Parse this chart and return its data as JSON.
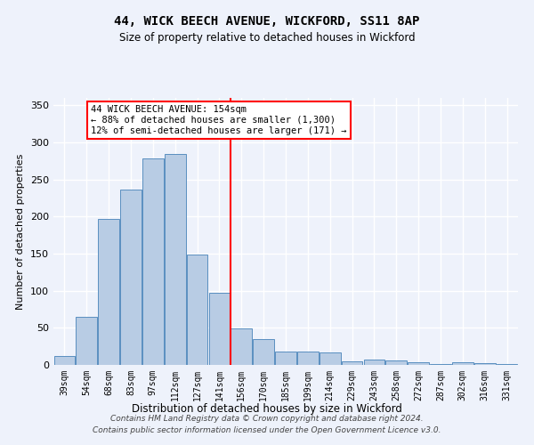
{
  "title": "44, WICK BEECH AVENUE, WICKFORD, SS11 8AP",
  "subtitle": "Size of property relative to detached houses in Wickford",
  "xlabel": "Distribution of detached houses by size in Wickford",
  "ylabel": "Number of detached properties",
  "footnote1": "Contains HM Land Registry data © Crown copyright and database right 2024.",
  "footnote2": "Contains public sector information licensed under the Open Government Licence v3.0.",
  "bar_labels": [
    "39sqm",
    "54sqm",
    "68sqm",
    "83sqm",
    "97sqm",
    "112sqm",
    "127sqm",
    "141sqm",
    "156sqm",
    "170sqm",
    "185sqm",
    "199sqm",
    "214sqm",
    "229sqm",
    "243sqm",
    "258sqm",
    "272sqm",
    "287sqm",
    "302sqm",
    "316sqm",
    "331sqm"
  ],
  "bar_values": [
    12,
    65,
    197,
    237,
    278,
    285,
    149,
    97,
    49,
    35,
    18,
    18,
    17,
    5,
    7,
    6,
    4,
    1,
    4,
    2,
    1
  ],
  "bar_color": "#b8cce4",
  "bar_edgecolor": "#5a8fc0",
  "annotation_title": "44 WICK BEECH AVENUE: 154sqm",
  "annotation_line1": "← 88% of detached houses are smaller (1,300)",
  "annotation_line2": "12% of semi-detached houses are larger (171) →",
  "vline_x": 7.5,
  "vline_color": "#ff0000",
  "annotation_box_edgecolor": "#ff0000",
  "background_color": "#eef2fb",
  "grid_color": "#ffffff",
  "ylim": [
    0,
    360
  ],
  "yticks": [
    0,
    50,
    100,
    150,
    200,
    250,
    300,
    350
  ],
  "title_fontsize": 10,
  "subtitle_fontsize": 8.5
}
